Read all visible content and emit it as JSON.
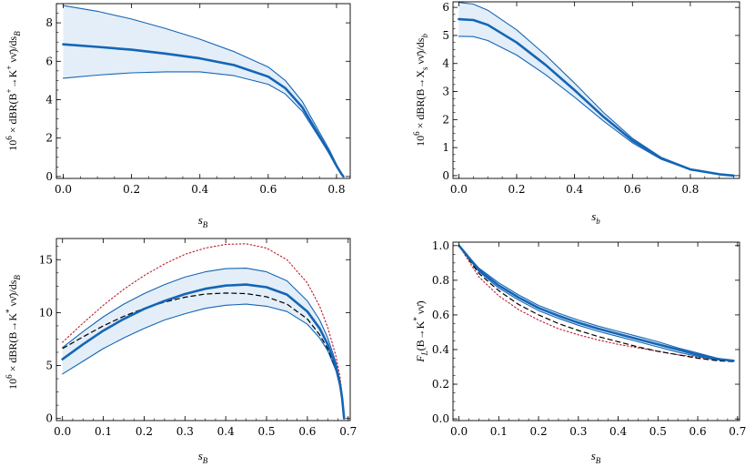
{
  "chart_data": [
    {
      "type": "line",
      "panel": "top-left",
      "xlabel": "s_B",
      "ylabel": "10^6 × dBR(B^+ → K^+ νν̄)/ds_B",
      "xlim": [
        -0.02,
        0.84
      ],
      "ylim": [
        -0.1,
        9.0
      ],
      "xticks": [
        0.0,
        0.2,
        0.4,
        0.6,
        0.8
      ],
      "xtick_labels": [
        "0.0",
        "0.2",
        "0.4",
        "0.6",
        "0.8"
      ],
      "yticks": [
        0,
        2,
        4,
        6,
        8
      ],
      "ytick_labels": [
        "0",
        "2",
        "4",
        "6",
        "8"
      ],
      "band_color": "#e3eef8",
      "curve_color": "#1565b5",
      "series": [
        {
          "name": "central",
          "style": "thick",
          "x": [
            0,
            0.1,
            0.2,
            0.3,
            0.4,
            0.5,
            0.6,
            0.65,
            0.7,
            0.75,
            0.78,
            0.8,
            0.815,
            0.82
          ],
          "values": [
            6.88,
            6.75,
            6.6,
            6.4,
            6.15,
            5.8,
            5.2,
            4.6,
            3.6,
            2.1,
            1.2,
            0.55,
            0.12,
            0.0
          ]
        },
        {
          "name": "upper",
          "style": "band-edge",
          "x": [
            0,
            0.1,
            0.2,
            0.3,
            0.4,
            0.5,
            0.6,
            0.65,
            0.7,
            0.75,
            0.78,
            0.8,
            0.815,
            0.82
          ],
          "values": [
            8.9,
            8.6,
            8.2,
            7.7,
            7.15,
            6.5,
            5.7,
            5.0,
            3.9,
            2.3,
            1.35,
            0.62,
            0.14,
            0.0
          ]
        },
        {
          "name": "lower",
          "style": "band-edge",
          "x": [
            0,
            0.1,
            0.2,
            0.3,
            0.4,
            0.5,
            0.6,
            0.65,
            0.7,
            0.75,
            0.78,
            0.8,
            0.815,
            0.82
          ],
          "values": [
            5.12,
            5.28,
            5.4,
            5.45,
            5.45,
            5.25,
            4.8,
            4.3,
            3.4,
            2.0,
            1.15,
            0.5,
            0.1,
            0.0
          ]
        }
      ]
    },
    {
      "type": "line",
      "panel": "top-right",
      "xlabel": "s_b",
      "ylabel": "10^6 × dBR(B → X_s νν̄)/ds_b",
      "xlim": [
        -0.02,
        0.97
      ],
      "ylim": [
        -0.1,
        6.2
      ],
      "xticks": [
        0.0,
        0.2,
        0.4,
        0.6,
        0.8
      ],
      "xtick_labels": [
        "0.0",
        "0.2",
        "0.4",
        "0.6",
        "0.8"
      ],
      "yticks": [
        0,
        1,
        2,
        3,
        4,
        5,
        6
      ],
      "ytick_labels": [
        "0",
        "1",
        "2",
        "3",
        "4",
        "5",
        "6"
      ],
      "band_color": "#e3eef8",
      "curve_color": "#1565b5",
      "series": [
        {
          "name": "central",
          "style": "thick",
          "x": [
            0,
            0.05,
            0.1,
            0.2,
            0.3,
            0.4,
            0.5,
            0.6,
            0.7,
            0.8,
            0.9,
            0.95
          ],
          "values": [
            5.58,
            5.55,
            5.38,
            4.75,
            3.95,
            3.05,
            2.1,
            1.25,
            0.62,
            0.22,
            0.05,
            0.0
          ]
        },
        {
          "name": "upper",
          "style": "band-edge",
          "x": [
            0,
            0.05,
            0.1,
            0.2,
            0.3,
            0.4,
            0.5,
            0.6,
            0.7,
            0.8,
            0.9,
            0.95
          ],
          "values": [
            6.18,
            6.12,
            5.9,
            5.2,
            4.3,
            3.3,
            2.25,
            1.33,
            0.65,
            0.23,
            0.05,
            0.0
          ]
        },
        {
          "name": "lower",
          "style": "band-edge",
          "x": [
            0,
            0.05,
            0.1,
            0.2,
            0.3,
            0.4,
            0.5,
            0.6,
            0.7,
            0.8,
            0.9,
            0.95
          ],
          "values": [
            4.97,
            4.96,
            4.82,
            4.3,
            3.6,
            2.8,
            1.95,
            1.17,
            0.58,
            0.21,
            0.05,
            0.0
          ]
        }
      ]
    },
    {
      "type": "line",
      "panel": "bottom-left",
      "xlabel": "s_B",
      "ylabel": "10^6 × dBR(B → K* νν̄)/ds_B",
      "xlim": [
        -0.015,
        0.705
      ],
      "ylim": [
        -0.2,
        17.0
      ],
      "xticks": [
        0.0,
        0.1,
        0.2,
        0.3,
        0.4,
        0.5,
        0.6,
        0.7
      ],
      "xtick_labels": [
        "0.0",
        "0.1",
        "0.2",
        "0.3",
        "0.4",
        "0.5",
        "0.6",
        "0.7"
      ],
      "yticks": [
        0,
        5,
        10,
        15
      ],
      "ytick_labels": [
        "0",
        "5",
        "10",
        "15"
      ],
      "band_color": "#e3eef8",
      "curve_color": "#1565b5",
      "red_color": "#c0182a",
      "series": [
        {
          "name": "central",
          "style": "thick",
          "x": [
            0,
            0.05,
            0.1,
            0.15,
            0.2,
            0.25,
            0.3,
            0.35,
            0.4,
            0.45,
            0.5,
            0.55,
            0.6,
            0.63,
            0.65,
            0.67,
            0.68,
            0.685,
            0.69
          ],
          "values": [
            5.6,
            7.0,
            8.3,
            9.4,
            10.35,
            11.1,
            11.75,
            12.25,
            12.55,
            12.65,
            12.4,
            11.7,
            10.1,
            8.5,
            7.0,
            4.9,
            3.2,
            2.0,
            0.0
          ]
        },
        {
          "name": "upper",
          "style": "band-edge",
          "x": [
            0,
            0.05,
            0.1,
            0.15,
            0.2,
            0.25,
            0.3,
            0.35,
            0.4,
            0.45,
            0.5,
            0.55,
            0.6,
            0.63,
            0.65,
            0.67,
            0.68,
            0.685,
            0.69
          ],
          "values": [
            6.7,
            8.2,
            9.6,
            10.8,
            11.8,
            12.65,
            13.35,
            13.85,
            14.15,
            14.2,
            13.85,
            13.0,
            11.1,
            9.3,
            7.6,
            5.3,
            3.5,
            2.2,
            0.0
          ]
        },
        {
          "name": "lower",
          "style": "band-edge",
          "x": [
            0,
            0.05,
            0.1,
            0.15,
            0.2,
            0.25,
            0.3,
            0.35,
            0.4,
            0.45,
            0.5,
            0.55,
            0.6,
            0.63,
            0.65,
            0.67,
            0.68,
            0.685,
            0.69
          ],
          "values": [
            4.2,
            5.4,
            6.6,
            7.6,
            8.5,
            9.3,
            9.9,
            10.4,
            10.7,
            10.8,
            10.6,
            10.1,
            8.9,
            7.6,
            6.4,
            4.5,
            3.0,
            1.8,
            0.0
          ]
        },
        {
          "name": "black-dashed",
          "style": "dashed",
          "x": [
            0,
            0.05,
            0.1,
            0.15,
            0.2,
            0.25,
            0.3,
            0.35,
            0.4,
            0.45,
            0.5,
            0.55,
            0.6,
            0.63,
            0.65,
            0.67,
            0.68,
            0.685,
            0.69
          ],
          "values": [
            6.6,
            7.7,
            8.75,
            9.65,
            10.4,
            11.0,
            11.45,
            11.75,
            11.85,
            11.8,
            11.5,
            10.8,
            9.4,
            7.9,
            6.6,
            4.7,
            3.1,
            1.9,
            0.0
          ]
        },
        {
          "name": "red-dotted",
          "style": "dotted",
          "x": [
            0,
            0.05,
            0.1,
            0.15,
            0.2,
            0.25,
            0.3,
            0.35,
            0.4,
            0.45,
            0.5,
            0.55,
            0.6,
            0.63,
            0.65,
            0.67,
            0.68,
            0.685,
            0.69
          ],
          "values": [
            7.2,
            9.0,
            10.7,
            12.2,
            13.5,
            14.6,
            15.5,
            16.1,
            16.45,
            16.5,
            16.1,
            15.0,
            12.8,
            10.6,
            8.6,
            5.9,
            3.9,
            2.4,
            0.0
          ]
        }
      ]
    },
    {
      "type": "line",
      "panel": "bottom-right",
      "xlabel": "s_B",
      "ylabel": "F_L(B → K* νν̄)",
      "xlim": [
        -0.015,
        0.705
      ],
      "ylim": [
        -0.01,
        1.02
      ],
      "xticks": [
        0.0,
        0.1,
        0.2,
        0.3,
        0.4,
        0.5,
        0.6,
        0.7
      ],
      "xtick_labels": [
        "0.0",
        "0.1",
        "0.2",
        "0.3",
        "0.4",
        "0.5",
        "0.6",
        "0.7"
      ],
      "yticks": [
        0.0,
        0.2,
        0.4,
        0.6,
        0.8,
        1.0
      ],
      "ytick_labels": [
        "0.0",
        "0.2",
        "0.4",
        "0.6",
        "0.8",
        "1.0"
      ],
      "band_color": "#e3eef8",
      "curve_color": "#1565b5",
      "red_color": "#c0182a",
      "series": [
        {
          "name": "central",
          "style": "thick",
          "x": [
            0,
            0.05,
            0.1,
            0.15,
            0.2,
            0.25,
            0.3,
            0.35,
            0.4,
            0.45,
            0.5,
            0.55,
            0.6,
            0.65,
            0.69
          ],
          "values": [
            1.0,
            0.86,
            0.77,
            0.7,
            0.64,
            0.595,
            0.555,
            0.52,
            0.49,
            0.46,
            0.43,
            0.4,
            0.37,
            0.345,
            0.335
          ]
        },
        {
          "name": "upper",
          "style": "band-edge",
          "x": [
            0,
            0.05,
            0.1,
            0.15,
            0.2,
            0.25,
            0.3,
            0.35,
            0.4,
            0.45,
            0.5,
            0.55,
            0.6,
            0.65,
            0.69
          ],
          "values": [
            1.0,
            0.87,
            0.785,
            0.715,
            0.655,
            0.61,
            0.57,
            0.535,
            0.505,
            0.475,
            0.445,
            0.41,
            0.38,
            0.35,
            0.335
          ]
        },
        {
          "name": "lower",
          "style": "band-edge",
          "x": [
            0,
            0.05,
            0.1,
            0.15,
            0.2,
            0.25,
            0.3,
            0.35,
            0.4,
            0.45,
            0.5,
            0.55,
            0.6,
            0.65,
            0.69
          ],
          "values": [
            1.0,
            0.85,
            0.755,
            0.685,
            0.625,
            0.58,
            0.54,
            0.505,
            0.475,
            0.445,
            0.415,
            0.385,
            0.36,
            0.34,
            0.335
          ]
        },
        {
          "name": "black-dashed",
          "style": "dashed",
          "x": [
            0,
            0.05,
            0.1,
            0.15,
            0.2,
            0.25,
            0.3,
            0.35,
            0.4,
            0.45,
            0.5,
            0.55,
            0.6,
            0.65,
            0.69
          ],
          "values": [
            1.0,
            0.84,
            0.74,
            0.66,
            0.6,
            0.55,
            0.51,
            0.475,
            0.445,
            0.415,
            0.39,
            0.37,
            0.35,
            0.335,
            0.33
          ]
        },
        {
          "name": "red-dotted",
          "style": "dotted",
          "x": [
            0,
            0.05,
            0.1,
            0.15,
            0.2,
            0.25,
            0.3,
            0.35,
            0.4,
            0.45,
            0.5,
            0.55,
            0.6,
            0.65,
            0.69
          ],
          "values": [
            1.0,
            0.82,
            0.71,
            0.63,
            0.57,
            0.52,
            0.485,
            0.455,
            0.43,
            0.41,
            0.39,
            0.37,
            0.355,
            0.34,
            0.335
          ]
        }
      ]
    }
  ]
}
